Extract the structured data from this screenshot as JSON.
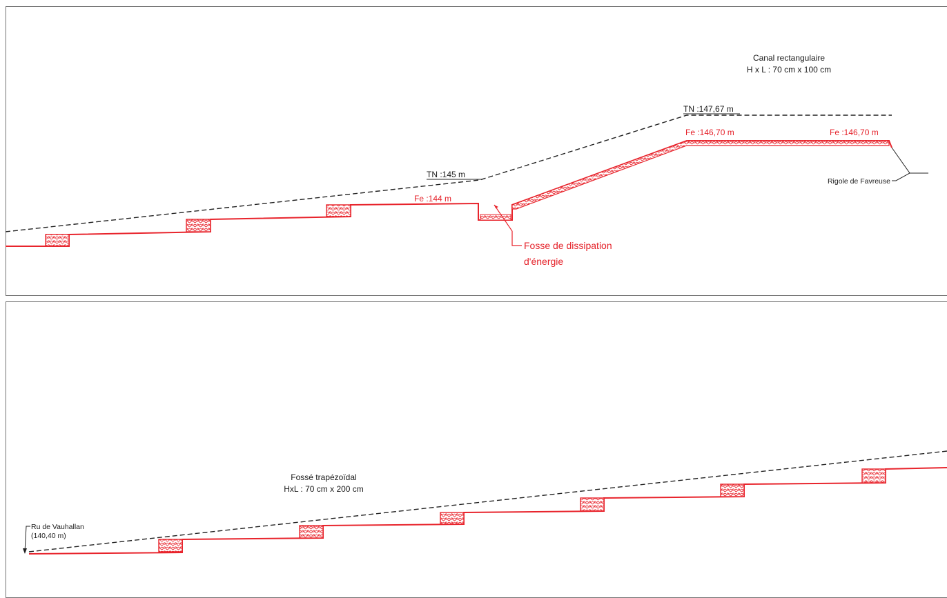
{
  "top_profile": {
    "canal_title": "Canal rectangulaire",
    "canal_dims": "H x L : 70 cm x 100 cm",
    "tn_upper": "TN :147,67 m",
    "tn_mid": "TN :145 m",
    "fe_upper_left": "Fe :146,70 m",
    "fe_upper_right": "Fe :146,70 m",
    "fe_lower": "Fe :144 m",
    "outlet": "Rigole de Favreuse",
    "pit_label_line1": "Fosse de dissipation",
    "pit_label_line2": "d'énergie"
  },
  "bottom_profile": {
    "ditch_title": "Fossé trapézoïdal",
    "ditch_dims": "HxL : 70 cm x 200 cm",
    "outlet_line1": "Ru de Vauhallan",
    "outlet_line2": "(140,40 m)"
  },
  "colors": {
    "ground_line": "#222222",
    "invert_line": "#e8242c",
    "frame": "#6f6f6f"
  }
}
